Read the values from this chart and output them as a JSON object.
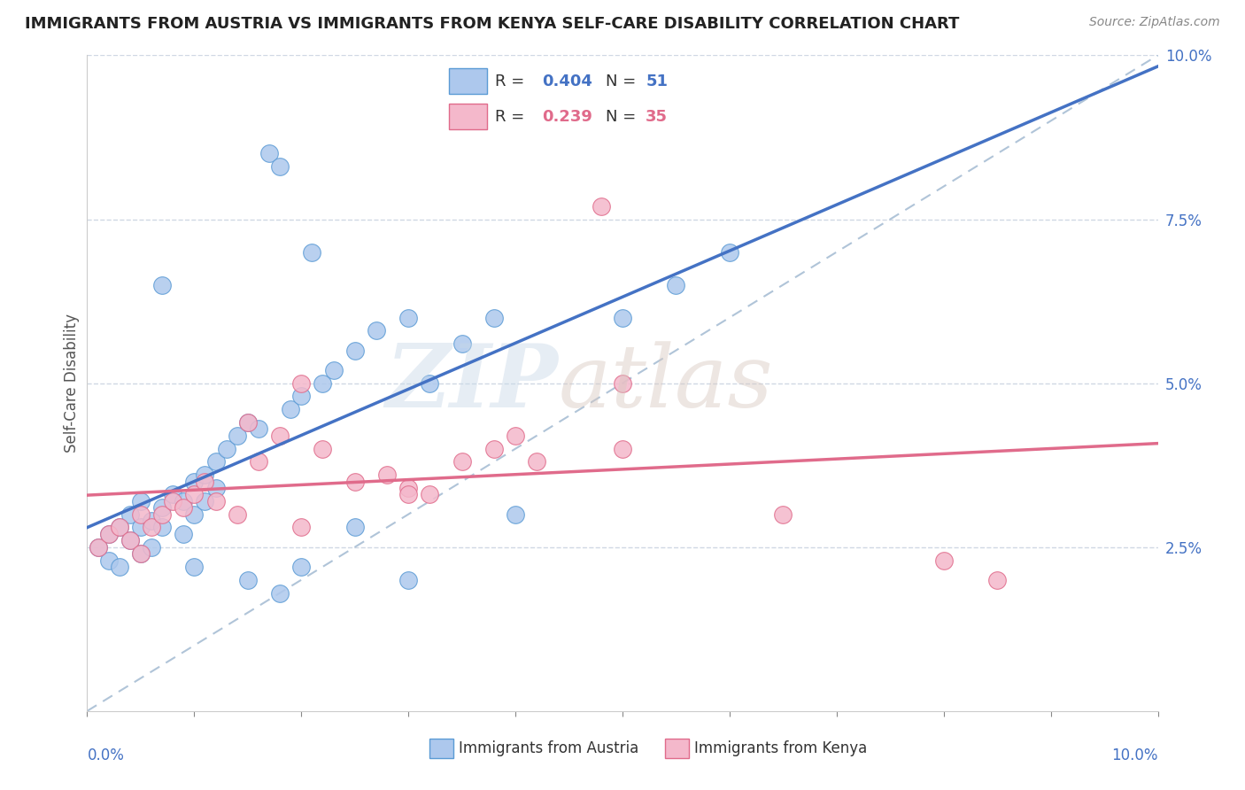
{
  "title": "IMMIGRANTS FROM AUSTRIA VS IMMIGRANTS FROM KENYA SELF-CARE DISABILITY CORRELATION CHART",
  "source": "Source: ZipAtlas.com",
  "ylabel": "Self-Care Disability",
  "austria_label": "Immigrants from Austria",
  "kenya_label": "Immigrants from Kenya",
  "austria_R": 0.404,
  "austria_N": 51,
  "kenya_R": 0.239,
  "kenya_N": 35,
  "austria_color": "#adc8ed",
  "austria_edge_color": "#5b9bd5",
  "kenya_color": "#f4b8cb",
  "kenya_edge_color": "#e06b8b",
  "ref_line_color": "#b0c4d8",
  "austria_line_color": "#4472c4",
  "kenya_line_color": "#e06b8b",
  "grid_color": "#d0d8e4",
  "austria_x": [
    0.001,
    0.002,
    0.002,
    0.003,
    0.003,
    0.004,
    0.004,
    0.005,
    0.005,
    0.005,
    0.006,
    0.006,
    0.007,
    0.007,
    0.008,
    0.009,
    0.009,
    0.01,
    0.01,
    0.011,
    0.011,
    0.012,
    0.012,
    0.013,
    0.014,
    0.015,
    0.016,
    0.017,
    0.018,
    0.019,
    0.02,
    0.021,
    0.022,
    0.023,
    0.025,
    0.027,
    0.03,
    0.032,
    0.035,
    0.038,
    0.02,
    0.025,
    0.03,
    0.04,
    0.05,
    0.055,
    0.06,
    0.007,
    0.01,
    0.015,
    0.018
  ],
  "austria_y": [
    0.025,
    0.027,
    0.023,
    0.028,
    0.022,
    0.026,
    0.03,
    0.024,
    0.028,
    0.032,
    0.025,
    0.029,
    0.028,
    0.031,
    0.033,
    0.027,
    0.032,
    0.03,
    0.035,
    0.032,
    0.036,
    0.034,
    0.038,
    0.04,
    0.042,
    0.044,
    0.043,
    0.085,
    0.083,
    0.046,
    0.048,
    0.07,
    0.05,
    0.052,
    0.055,
    0.058,
    0.06,
    0.05,
    0.056,
    0.06,
    0.022,
    0.028,
    0.02,
    0.03,
    0.06,
    0.065,
    0.07,
    0.065,
    0.022,
    0.02,
    0.018
  ],
  "kenya_x": [
    0.001,
    0.002,
    0.003,
    0.004,
    0.005,
    0.005,
    0.006,
    0.007,
    0.008,
    0.009,
    0.01,
    0.011,
    0.012,
    0.014,
    0.015,
    0.016,
    0.018,
    0.02,
    0.022,
    0.025,
    0.028,
    0.03,
    0.032,
    0.035,
    0.038,
    0.042,
    0.048,
    0.05,
    0.065,
    0.08,
    0.085,
    0.05,
    0.04,
    0.03,
    0.02
  ],
  "kenya_y": [
    0.025,
    0.027,
    0.028,
    0.026,
    0.03,
    0.024,
    0.028,
    0.03,
    0.032,
    0.031,
    0.033,
    0.035,
    0.032,
    0.03,
    0.044,
    0.038,
    0.042,
    0.05,
    0.04,
    0.035,
    0.036,
    0.034,
    0.033,
    0.038,
    0.04,
    0.038,
    0.077,
    0.05,
    0.03,
    0.023,
    0.02,
    0.04,
    0.042,
    0.033,
    0.028
  ],
  "xlim": [
    0.0,
    0.1
  ],
  "ylim": [
    0.0,
    0.1
  ],
  "yticks": [
    0.025,
    0.05,
    0.075,
    0.1
  ],
  "ytick_labels": [
    "2.5%",
    "5.0%",
    "7.5%",
    "10.0%"
  ],
  "xtick_left_label": "0.0%",
  "xtick_right_label": "10.0%"
}
